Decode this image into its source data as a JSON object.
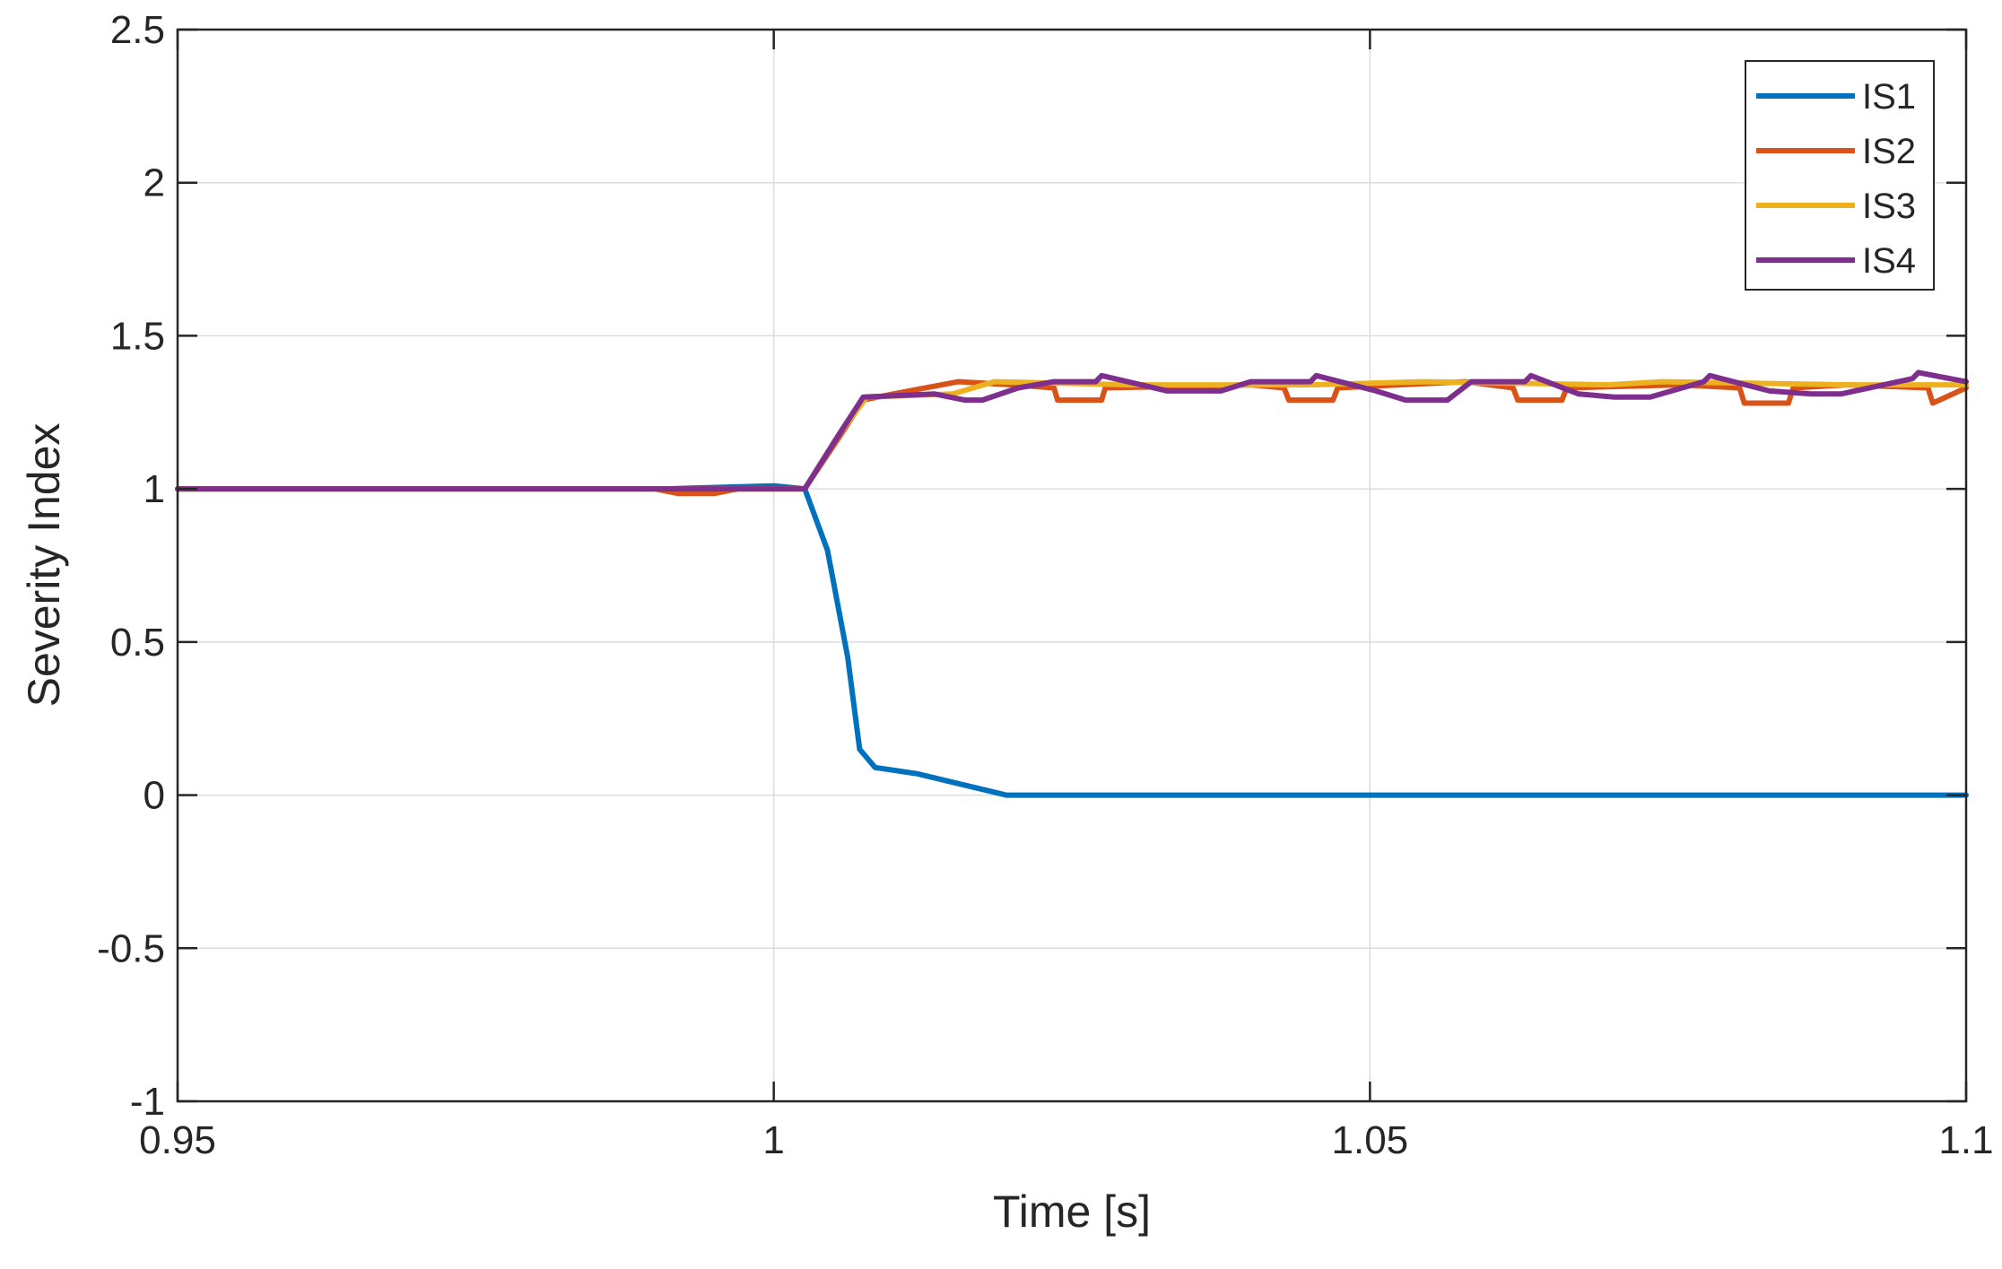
{
  "chart_data": {
    "type": "line",
    "title": "",
    "xlabel": "Time [s]",
    "ylabel": "Severity Index",
    "xlim": [
      0.95,
      1.1
    ],
    "ylim": [
      -1,
      2.5
    ],
    "x_ticks": [
      0.95,
      1,
      1.05,
      1.1
    ],
    "y_ticks": [
      -1,
      -0.5,
      0,
      0.5,
      1,
      1.5,
      2,
      2.5
    ],
    "x_tick_labels": [
      "0.95",
      "1",
      "1.05",
      "1.1"
    ],
    "y_tick_labels": [
      "-1",
      "-0.5",
      "0",
      "0.5",
      "1",
      "1.5",
      "2",
      "2.5"
    ],
    "grid": true,
    "legend": {
      "position": "top-right"
    },
    "series": [
      {
        "name": "IS1",
        "color": "#0072BD",
        "x": [
          0.95,
          0.991,
          1.0,
          1.0026,
          1.0045,
          1.0062,
          1.0072,
          1.0085,
          1.012,
          1.0195,
          1.03,
          1.1
        ],
        "y": [
          1,
          1,
          1.01,
          1.0,
          0.8,
          0.45,
          0.15,
          0.09,
          0.07,
          0.0,
          0.0,
          0.0
        ]
      },
      {
        "name": "IS2",
        "color": "#D95319",
        "x": [
          0.95,
          0.99,
          0.992,
          0.995,
          0.997,
          1.0026,
          1.0055,
          1.0075,
          1.01,
          1.0155,
          1.02,
          1.0235,
          1.0238,
          1.0275,
          1.0278,
          1.04,
          1.0428,
          1.0432,
          1.0469,
          1.0473,
          1.058,
          1.062,
          1.0624,
          1.0661,
          1.0665,
          1.076,
          1.081,
          1.0814,
          1.0851,
          1.0855,
          1.09,
          1.0968,
          1.0972,
          1.1
        ],
        "y": [
          1,
          1,
          0.985,
          0.985,
          1.0,
          1.0,
          1.17,
          1.29,
          1.31,
          1.35,
          1.34,
          1.33,
          1.29,
          1.29,
          1.33,
          1.34,
          1.33,
          1.29,
          1.29,
          1.33,
          1.35,
          1.33,
          1.29,
          1.29,
          1.33,
          1.34,
          1.33,
          1.28,
          1.28,
          1.33,
          1.34,
          1.33,
          1.28,
          1.33
        ]
      },
      {
        "name": "IS3",
        "color": "#EDB120",
        "x": [
          0.95,
          1.0026,
          1.0055,
          1.0078,
          1.015,
          1.0185,
          1.03,
          1.045,
          1.0545,
          1.07,
          1.0745,
          1.09,
          1.1
        ],
        "y": [
          1,
          1.0,
          1.18,
          1.3,
          1.31,
          1.35,
          1.34,
          1.34,
          1.35,
          1.34,
          1.35,
          1.34,
          1.34
        ]
      },
      {
        "name": "IS4",
        "color": "#7E2F8E",
        "x": [
          0.95,
          1.0026,
          1.0055,
          1.0075,
          1.0135,
          1.016,
          1.0175,
          1.0205,
          1.0235,
          1.027,
          1.0275,
          1.033,
          1.0375,
          1.04,
          1.045,
          1.0455,
          1.0505,
          1.053,
          1.0565,
          1.0585,
          1.063,
          1.0635,
          1.0675,
          1.0705,
          1.0735,
          1.078,
          1.0785,
          1.0835,
          1.087,
          1.0895,
          1.0955,
          1.096,
          1.1
        ],
        "y": [
          1,
          1.0,
          1.18,
          1.3,
          1.31,
          1.29,
          1.29,
          1.33,
          1.35,
          1.35,
          1.37,
          1.32,
          1.32,
          1.35,
          1.35,
          1.37,
          1.32,
          1.29,
          1.29,
          1.35,
          1.35,
          1.37,
          1.31,
          1.3,
          1.3,
          1.35,
          1.37,
          1.32,
          1.31,
          1.31,
          1.36,
          1.38,
          1.35
        ]
      }
    ]
  }
}
